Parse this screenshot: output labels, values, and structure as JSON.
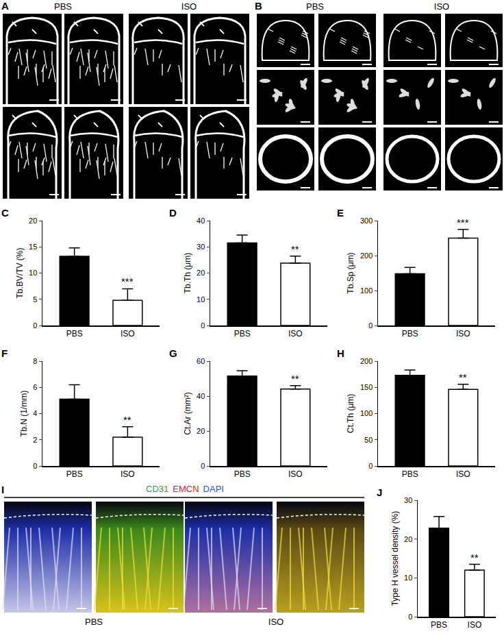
{
  "panels": {
    "A": {
      "label": "A",
      "groups": [
        "PBS",
        "ISO"
      ]
    },
    "B": {
      "label": "B",
      "groups": [
        "PBS",
        "ISO"
      ]
    },
    "I": {
      "label": "I",
      "groups": [
        "PBS",
        "ISO"
      ],
      "stains": [
        {
          "text": "CD31",
          "color": "#1fa83a"
        },
        {
          "text": "EMCN",
          "color": "#d8232a"
        },
        {
          "text": "DAPI",
          "color": "#2a4fd8"
        }
      ]
    }
  },
  "chart_data": [
    {
      "panel": "C",
      "type": "bar",
      "y_label": "Tb.BV/TV (%)",
      "categories": [
        "PBS",
        "ISO"
      ],
      "values": [
        13.2,
        4.8
      ],
      "errors": [
        1.6,
        2.2
      ],
      "colors": [
        "#000000",
        "#ffffff"
      ],
      "ylim": [
        0,
        20
      ],
      "yticks": [
        0,
        5,
        10,
        15,
        20
      ],
      "significance": [
        null,
        "***"
      ]
    },
    {
      "panel": "D",
      "type": "bar",
      "y_label": "Tb.Th (μm)",
      "categories": [
        "PBS",
        "ISO"
      ],
      "values": [
        31.5,
        23.8
      ],
      "errors": [
        3,
        2.7
      ],
      "colors": [
        "#000000",
        "#ffffff"
      ],
      "ylim": [
        0,
        40
      ],
      "yticks": [
        0,
        10,
        20,
        30,
        40
      ],
      "significance": [
        null,
        "**"
      ]
    },
    {
      "panel": "E",
      "type": "bar",
      "y_label": "Tb.Sp (μm)",
      "categories": [
        "PBS",
        "ISO"
      ],
      "values": [
        148,
        250
      ],
      "errors": [
        18,
        25
      ],
      "colors": [
        "#000000",
        "#ffffff"
      ],
      "ylim": [
        0,
        300
      ],
      "yticks": [
        0,
        100,
        200,
        300
      ],
      "significance": [
        null,
        "***"
      ]
    },
    {
      "panel": "F",
      "type": "bar",
      "y_label": "Tb.N (1/mm)",
      "categories": [
        "PBS",
        "ISO"
      ],
      "values": [
        5.1,
        2.2
      ],
      "errors": [
        1.1,
        0.8
      ],
      "colors": [
        "#000000",
        "#ffffff"
      ],
      "ylim": [
        0,
        8
      ],
      "yticks": [
        0,
        2,
        4,
        6,
        8
      ],
      "significance": [
        null,
        "**"
      ]
    },
    {
      "panel": "G",
      "type": "bar",
      "y_label": "Ct.Ar (mm²)",
      "categories": [
        "PBS",
        "ISO"
      ],
      "values": [
        51.5,
        44
      ],
      "errors": [
        3,
        2
      ],
      "colors": [
        "#000000",
        "#ffffff"
      ],
      "ylim": [
        0,
        60
      ],
      "yticks": [
        0,
        20,
        40,
        60
      ],
      "significance": [
        null,
        "**"
      ]
    },
    {
      "panel": "H",
      "type": "bar",
      "y_label": "Ct.Th (μm)",
      "categories": [
        "PBS",
        "ISO"
      ],
      "values": [
        173,
        146
      ],
      "errors": [
        10,
        10
      ],
      "colors": [
        "#000000",
        "#ffffff"
      ],
      "ylim": [
        0,
        200
      ],
      "yticks": [
        0,
        50,
        100,
        150,
        200
      ],
      "significance": [
        null,
        "**"
      ]
    },
    {
      "panel": "J",
      "type": "bar",
      "y_label": "Type H vessel density (%)",
      "categories": [
        "PBS",
        "ISO"
      ],
      "values": [
        22.8,
        12
      ],
      "errors": [
        3,
        1.5
      ],
      "colors": [
        "#000000",
        "#ffffff"
      ],
      "ylim": [
        0,
        30
      ],
      "yticks": [
        0,
        10,
        20,
        30
      ],
      "significance": [
        null,
        "**"
      ]
    }
  ]
}
